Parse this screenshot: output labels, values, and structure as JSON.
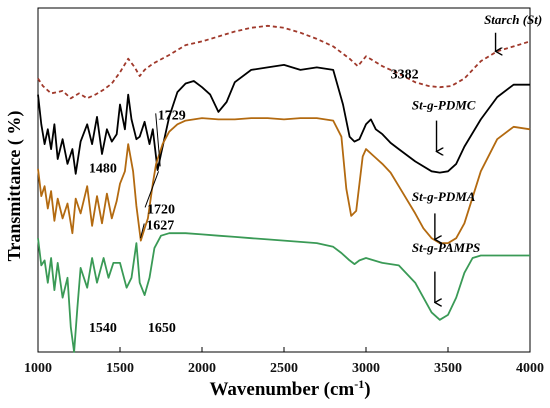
{
  "chart_data": {
    "type": "line",
    "xlabel": "Wavenumber (cm",
    "xlabel_sup": "-1",
    "xlabel_close": ")",
    "ylabel": "Transmittance ( %)",
    "xlim": [
      1000,
      4000
    ],
    "x_ticks": [
      1000,
      1500,
      2000,
      2500,
      3000,
      3500,
      4000
    ],
    "x_tick_labels": [
      "1000",
      "1500",
      "2000",
      "2500",
      "3000",
      "3500",
      "4000"
    ],
    "grid": false,
    "series": [
      {
        "name": "Starch (St)",
        "color": "#A0392B",
        "dash": "dashed",
        "x": [
          1000,
          1030,
          1080,
          1150,
          1200,
          1250,
          1300,
          1350,
          1400,
          1450,
          1500,
          1550,
          1590,
          1620,
          1650,
          1700,
          1800,
          1900,
          2000,
          2100,
          2200,
          2300,
          2400,
          2500,
          2600,
          2700,
          2800,
          2900,
          2950,
          3000,
          3050,
          3100,
          3200,
          3300,
          3382,
          3450,
          3520,
          3600,
          3700,
          3800,
          3900,
          4000
        ],
        "y": [
          70.5,
          67.5,
          64.5,
          65.5,
          62.5,
          64.5,
          62.5,
          64,
          66,
          68.5,
          73,
          78.5,
          75,
          71.5,
          74,
          76.5,
          80,
          84,
          85.5,
          87.5,
          89.5,
          91,
          91.8,
          91,
          89,
          86.5,
          83.5,
          78.5,
          75.5,
          79.5,
          77.5,
          75.5,
          72.5,
          69,
          67.5,
          67,
          67.5,
          70.5,
          77.5,
          81.5,
          83.5,
          85.5
        ]
      },
      {
        "name": "St-g-PDMC",
        "color": "#000000",
        "dash": "solid",
        "x": [
          1000,
          1020,
          1040,
          1060,
          1080,
          1100,
          1120,
          1150,
          1180,
          1210,
          1230,
          1260,
          1300,
          1330,
          1360,
          1390,
          1420,
          1450,
          1480,
          1500,
          1530,
          1550,
          1570,
          1600,
          1620,
          1650,
          1680,
          1700,
          1729,
          1750,
          1800,
          1850,
          1900,
          1950,
          2000,
          2050,
          2100,
          2150,
          2200,
          2300,
          2400,
          2500,
          2600,
          2700,
          2800,
          2860,
          2900,
          2930,
          2960,
          3000,
          3030,
          3060,
          3100,
          3150,
          3200,
          3300,
          3400,
          3450,
          3500,
          3550,
          3600,
          3700,
          3800,
          3900,
          4000
        ],
        "y": [
          64,
          52,
          44,
          50,
          42,
          52,
          38,
          46,
          36,
          42,
          32,
          45,
          52,
          44,
          55,
          40,
          50,
          45,
          48,
          60,
          50,
          64,
          54,
          46,
          47,
          53,
          44,
          50,
          33.5,
          40,
          55,
          65,
          68.5,
          69.5,
          67,
          64,
          57,
          61,
          69,
          74,
          75,
          76,
          74,
          75,
          74,
          60,
          47,
          45,
          46,
          52,
          54,
          50,
          48,
          44.5,
          42,
          37,
          33,
          32.5,
          33,
          36,
          43,
          54,
          63,
          68,
          68
        ]
      },
      {
        "name": "St-g-PDMA",
        "color": "#B36A10",
        "dash": "solid",
        "x": [
          1000,
          1020,
          1040,
          1060,
          1080,
          1100,
          1120,
          1150,
          1180,
          1210,
          1230,
          1260,
          1300,
          1330,
          1360,
          1390,
          1420,
          1450,
          1480,
          1500,
          1530,
          1550,
          1580,
          1600,
          1627,
          1650,
          1670,
          1700,
          1720,
          1760,
          1800,
          1850,
          1900,
          2000,
          2100,
          2200,
          2300,
          2400,
          2500,
          2600,
          2700,
          2800,
          2850,
          2880,
          2910,
          2940,
          2980,
          3000,
          3050,
          3100,
          3150,
          3200,
          3300,
          3350,
          3400,
          3450,
          3500,
          3550,
          3600,
          3700,
          3800,
          3900,
          4000
        ],
        "y": [
          34,
          23,
          27,
          18,
          25,
          13,
          22,
          14,
          20,
          8,
          22,
          16,
          27,
          11,
          23,
          12,
          24,
          14,
          21,
          28,
          33,
          44,
          33,
          19,
          5,
          10,
          14,
          28,
          36,
          44,
          49,
          52,
          53.5,
          54.5,
          54,
          54,
          54.5,
          54.5,
          54,
          54.5,
          54.5,
          53.5,
          47,
          26,
          15,
          17,
          39,
          42,
          39,
          36,
          32.5,
          27,
          16,
          10,
          6,
          4,
          4,
          6,
          12,
          33,
          46,
          51,
          50
        ]
      },
      {
        "name": "St-g-PAMPS",
        "color": "#3A9A56",
        "dash": "solid",
        "x": [
          1000,
          1020,
          1040,
          1060,
          1080,
          1100,
          1120,
          1150,
          1180,
          1200,
          1220,
          1240,
          1260,
          1300,
          1330,
          1360,
          1400,
          1430,
          1460,
          1500,
          1540,
          1570,
          1600,
          1620,
          1650,
          1680,
          1710,
          1750,
          1800,
          1900,
          2000,
          2100,
          2200,
          2300,
          2400,
          2500,
          2600,
          2700,
          2800,
          2850,
          2900,
          2930,
          2960,
          3000,
          3100,
          3200,
          3300,
          3350,
          3400,
          3450,
          3500,
          3550,
          3600,
          3650,
          3700,
          3800,
          3900,
          4000
        ],
        "y": [
          6,
          -5,
          -3,
          -12,
          -2,
          -15,
          -4,
          -18,
          -10,
          -30,
          -40,
          -22,
          -6,
          -14,
          -2,
          -12,
          -2,
          -10,
          -4,
          -4,
          -14,
          -10,
          4,
          -12,
          -17,
          -10,
          2,
          7,
          8,
          8,
          7.5,
          7,
          6.5,
          6,
          5.5,
          5,
          4.5,
          4,
          2.5,
          0,
          -3,
          -4.5,
          -3,
          -2,
          -4,
          -5,
          -12,
          -18,
          -24,
          -27,
          -25,
          -18,
          -8,
          -2,
          -1,
          -1,
          -1,
          -1
        ]
      }
    ],
    "series_labels": [
      {
        "text": "Starch (St)",
        "x": 3720,
        "y": 92.5,
        "arrow_from": [
          3790,
          89
        ],
        "arrow_to": [
          3790,
          81.5
        ]
      },
      {
        "text": "St-g-PDMC",
        "x": 3280,
        "y": 58,
        "arrow_from": [
          3430,
          53.5
        ],
        "arrow_to": [
          3430,
          41
        ]
      },
      {
        "text": "St-g-PDMA",
        "x": 3280,
        "y": 21,
        "arrow_from": [
          3420,
          16
        ],
        "arrow_to": [
          3420,
          5.5
        ]
      },
      {
        "text": "St-g-PAMPS",
        "x": 3280,
        "y": 0.5,
        "arrow_from": [
          3420,
          -7.5
        ],
        "arrow_to": [
          3420,
          -20
        ]
      }
    ],
    "annotations": [
      {
        "text": "3382",
        "x": 3150,
        "y": 70.5
      },
      {
        "text": "1729",
        "x": 1730,
        "y": 54,
        "line_to": [
          1745,
          35
        ]
      },
      {
        "text": "1480",
        "x": 1310,
        "y": 32.5
      },
      {
        "text": "1720",
        "x": 1665,
        "y": 16,
        "line_to": [
          1735,
          33
        ]
      },
      {
        "text": "1627",
        "x": 1660,
        "y": 9.5,
        "line_to": [
          1625,
          6
        ]
      },
      {
        "text": "1540",
        "x": 1310,
        "y": -32
      },
      {
        "text": "1650",
        "x": 1670,
        "y": -32
      }
    ],
    "y_range": [
      -40,
      99
    ]
  }
}
